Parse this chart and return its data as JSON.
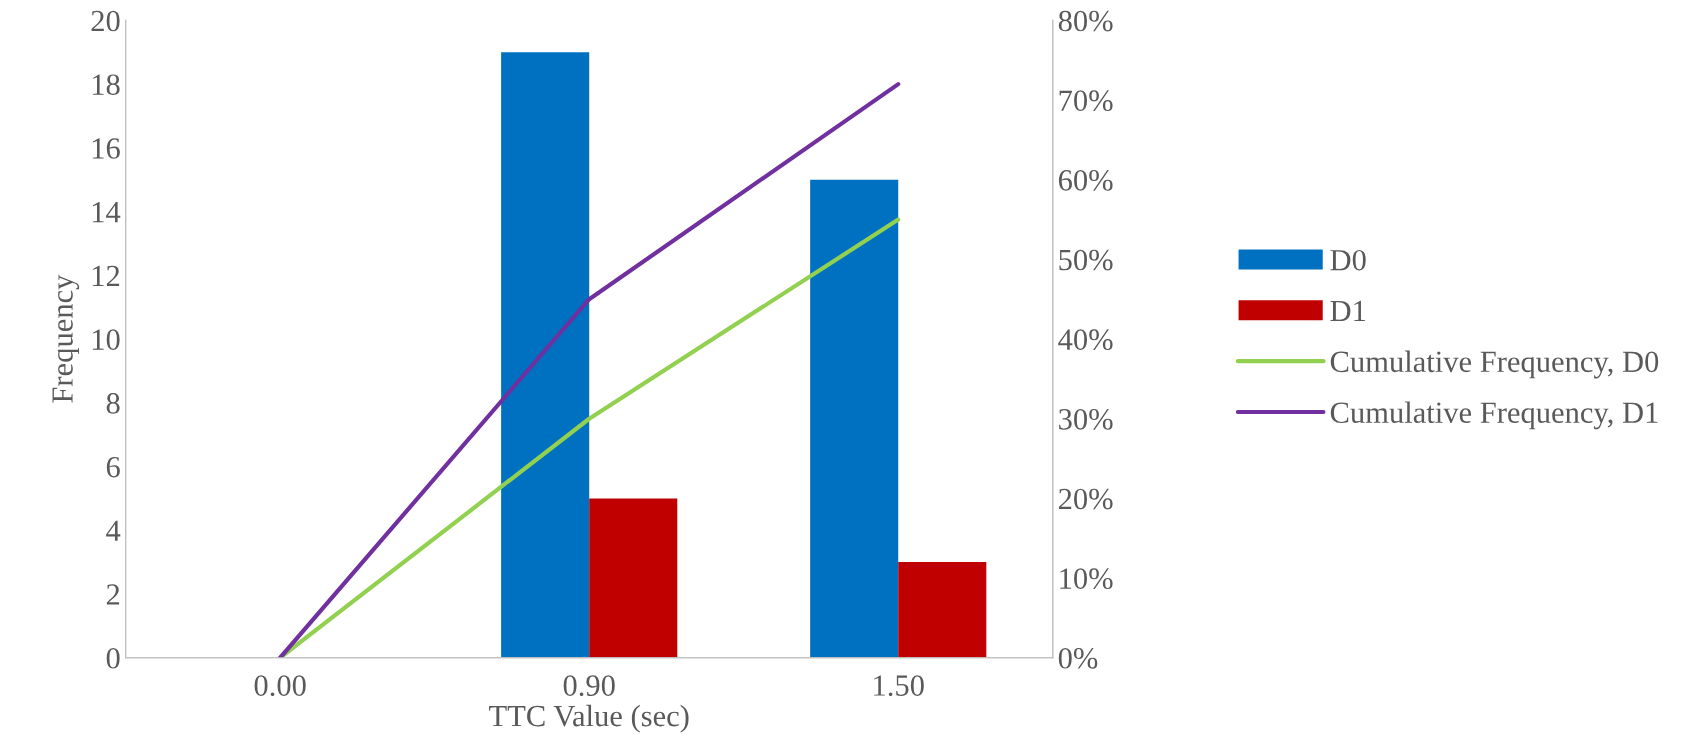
{
  "chart_data": {
    "type": "bar",
    "xlabel": "TTC Value (sec)",
    "ylabel": "Frequency",
    "categories": [
      "0.00",
      "0.90",
      "1.50"
    ],
    "series": [
      {
        "name": "D0",
        "color": "#0070c0",
        "values": [
          0,
          19,
          15
        ]
      },
      {
        "name": "D1",
        "color": "#c00000",
        "values": [
          0,
          5,
          3
        ]
      },
      {
        "name": "Cumulative Frequency, D0",
        "type": "line",
        "axis": "y2",
        "color": "#92d050",
        "values": [
          0,
          30,
          55
        ]
      },
      {
        "name": "Cumulative Frequency, D1",
        "type": "line",
        "axis": "y2",
        "color": "#7030a0",
        "values": [
          0,
          45,
          72
        ]
      }
    ],
    "ylim": [
      0,
      20
    ],
    "yticks": [
      0,
      2,
      4,
      6,
      8,
      10,
      12,
      14,
      16,
      18,
      20
    ],
    "y2lim": [
      0,
      80
    ],
    "y2ticks": [
      {
        "value": 0,
        "label": "0%"
      },
      {
        "value": 10,
        "label": "10%"
      },
      {
        "value": 20,
        "label": "20%"
      },
      {
        "value": 30,
        "label": "30%"
      },
      {
        "value": 40,
        "label": "40%"
      },
      {
        "value": 50,
        "label": "50%"
      },
      {
        "value": 60,
        "label": "60%"
      },
      {
        "value": 70,
        "label": "70%"
      },
      {
        "value": 80,
        "label": "80%"
      }
    ],
    "legend": "right",
    "grid": false,
    "marker": "none",
    "line_style": "solid"
  }
}
